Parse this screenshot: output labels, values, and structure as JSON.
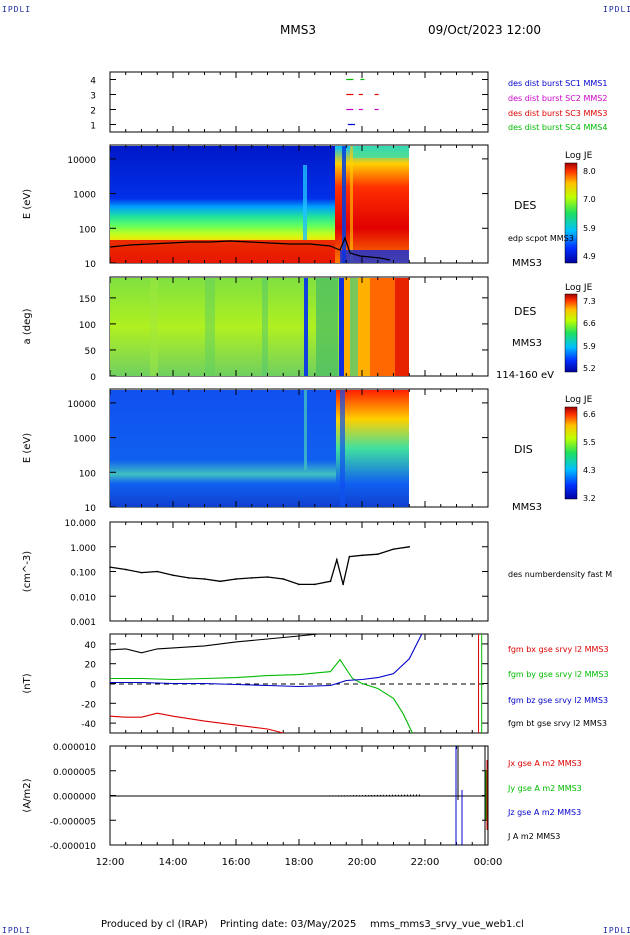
{
  "header": {
    "corner_tl": "IPDLI",
    "corner_tr": "IPDLI",
    "corner_bl": "IPDLI",
    "corner_br": "IPDLI",
    "spacecraft": "MMS3",
    "datetime": "09/Oct/2023 12:00"
  },
  "footer": {
    "produced_by": "Produced by cl (IRAP)",
    "printing_date": "Printing date: 03/May/2025",
    "filename": "mms_mms3_srvy_vue_web1.cl"
  },
  "colors": {
    "blue": "#0000cc",
    "magenta": "#cc00cc",
    "red": "#dd0000",
    "green": "#00bb00",
    "black": "#000000"
  },
  "chart_data": [
    {
      "type": "scatter",
      "id": "burst",
      "yticks": [
        "1",
        "2",
        "3",
        "4"
      ],
      "ylim": [
        0.5,
        4.5
      ],
      "series": [
        {
          "name": "des dist burst SC1 MMS1",
          "color": "#0000cc",
          "y": 1,
          "x": [
            19.55,
            19.65
          ]
        },
        {
          "name": "des dist burst SC2 MMS2",
          "color": "#cc00cc",
          "y": 2,
          "x": [
            19.5,
            19.6,
            19.9,
            20.4
          ]
        },
        {
          "name": "des dist burst SC3 MMS3",
          "color": "#dd0000",
          "y": 3,
          "x": [
            19.5,
            19.6,
            19.9,
            20.4
          ]
        },
        {
          "name": "des dist burst SC4 MMS4",
          "color": "#00bb00",
          "y": 4,
          "x": [
            19.5,
            19.6,
            19.95
          ]
        }
      ]
    },
    {
      "type": "heatmap",
      "id": "des_energy",
      "ylabel": "E (eV)",
      "yscale": "log",
      "yticks": [
        "10",
        "100",
        "1000",
        "10000"
      ],
      "side_label": "DES",
      "overlay_label": "edp scpot MMS3",
      "spacecraft_label": "MMS3",
      "colorbar": {
        "title": "Log JE",
        "ticks": [
          "8.0",
          "7.0",
          "5.9",
          "4.9"
        ]
      }
    },
    {
      "type": "heatmap",
      "id": "des_pitch",
      "ylabel": "a (deg)",
      "yticks": [
        "0",
        "50",
        "100",
        "150"
      ],
      "side_label": "DES",
      "spacecraft_label": "MMS3",
      "energy_label": "114-160 eV",
      "colorbar": {
        "title": "Log JE",
        "ticks": [
          "7.3",
          "6.6",
          "5.9",
          "5.2"
        ]
      }
    },
    {
      "type": "heatmap",
      "id": "dis_energy",
      "ylabel": "E (eV)",
      "yscale": "log",
      "yticks": [
        "10",
        "100",
        "1000",
        "10000"
      ],
      "side_label": "DIS",
      "spacecraft_label": "MMS3",
      "colorbar": {
        "title": "Log JE",
        "ticks": [
          "6.6",
          "5.5",
          "4.3",
          "3.2"
        ]
      }
    },
    {
      "type": "line",
      "id": "density",
      "ylabel": "(cm^-3)",
      "yscale": "log",
      "yticks": [
        "0.001",
        "0.010",
        "0.100",
        "1.000",
        "10.000"
      ],
      "legend": "des numberdensity fast M",
      "x_hours": [
        12.0,
        12.5,
        13.0,
        13.5,
        14.0,
        14.5,
        15.0,
        15.5,
        16.0,
        16.5,
        17.0,
        17.5,
        18.0,
        18.5,
        19.0,
        19.2,
        19.4,
        19.6,
        20.0,
        20.5,
        21.0,
        21.5
      ],
      "values": [
        0.15,
        0.12,
        0.09,
        0.1,
        0.07,
        0.055,
        0.05,
        0.04,
        0.05,
        0.055,
        0.06,
        0.05,
        0.03,
        0.03,
        0.04,
        0.3,
        0.03,
        0.4,
        0.45,
        0.5,
        0.8,
        1.0
      ]
    },
    {
      "type": "line",
      "id": "magnetic",
      "ylabel": "(nT)",
      "yticks": [
        "-40",
        "-20",
        "0",
        "20",
        "40"
      ],
      "ylim": [
        -50,
        50
      ],
      "series": [
        {
          "name": "fgm bx gse srvy l2 MMS3",
          "color": "#dd0000",
          "x": [
            12.0,
            12.5,
            13.0,
            13.5,
            14.0,
            15.0,
            16.0,
            17.0,
            17.5
          ],
          "values": [
            -33,
            -34,
            -34,
            -30,
            -33,
            -38,
            -42,
            -46,
            -50
          ]
        },
        {
          "name": "fgm by gse srvy l2 MMS3",
          "color": "#00bb00",
          "x": [
            12.0,
            13.0,
            14.0,
            15.0,
            16.0,
            17.0,
            18.0,
            19.0,
            19.3,
            19.7,
            20.0,
            20.5,
            21.0,
            21.3,
            21.6
          ],
          "values": [
            5,
            5,
            4,
            5,
            6,
            8,
            9,
            12,
            24,
            5,
            0,
            -5,
            -15,
            -30,
            -50
          ]
        },
        {
          "name": "fgm bz gse srvy l2 MMS3",
          "color": "#0000cc",
          "x": [
            12.0,
            13.0,
            14.0,
            15.0,
            16.0,
            17.0,
            18.0,
            19.0,
            19.5,
            20.0,
            20.5,
            21.0,
            21.5,
            21.9
          ],
          "values": [
            1,
            1,
            0,
            0,
            -1,
            -2,
            -3,
            -2,
            3,
            4,
            6,
            10,
            25,
            50
          ]
        },
        {
          "name": "fgm bt gse srvy l2 MMS3",
          "color": "#000000",
          "x": [
            12.0,
            12.5,
            13.0,
            13.5,
            14.0,
            15.0,
            16.0,
            17.0,
            18.0,
            18.6
          ],
          "values": [
            34,
            35,
            31,
            35,
            36,
            38,
            42,
            45,
            48,
            50
          ]
        }
      ]
    },
    {
      "type": "line",
      "id": "current",
      "ylabel": "(A/m2)",
      "yticks": [
        "0.000010",
        "0.000005",
        "0.000000",
        "-0.000005",
        "-0.000010"
      ],
      "ylim": [
        -1e-05,
        1e-05
      ],
      "legend": [
        "Jx gse A m2 MMS3",
        "Jy gse A m2 MMS3",
        "Jz gse A m2 MMS3",
        "J A m2 MMS3"
      ]
    }
  ],
  "time_axis": {
    "ticks": [
      "12:00",
      "14:00",
      "16:00",
      "18:00",
      "20:00",
      "22:00",
      "00:00"
    ]
  }
}
